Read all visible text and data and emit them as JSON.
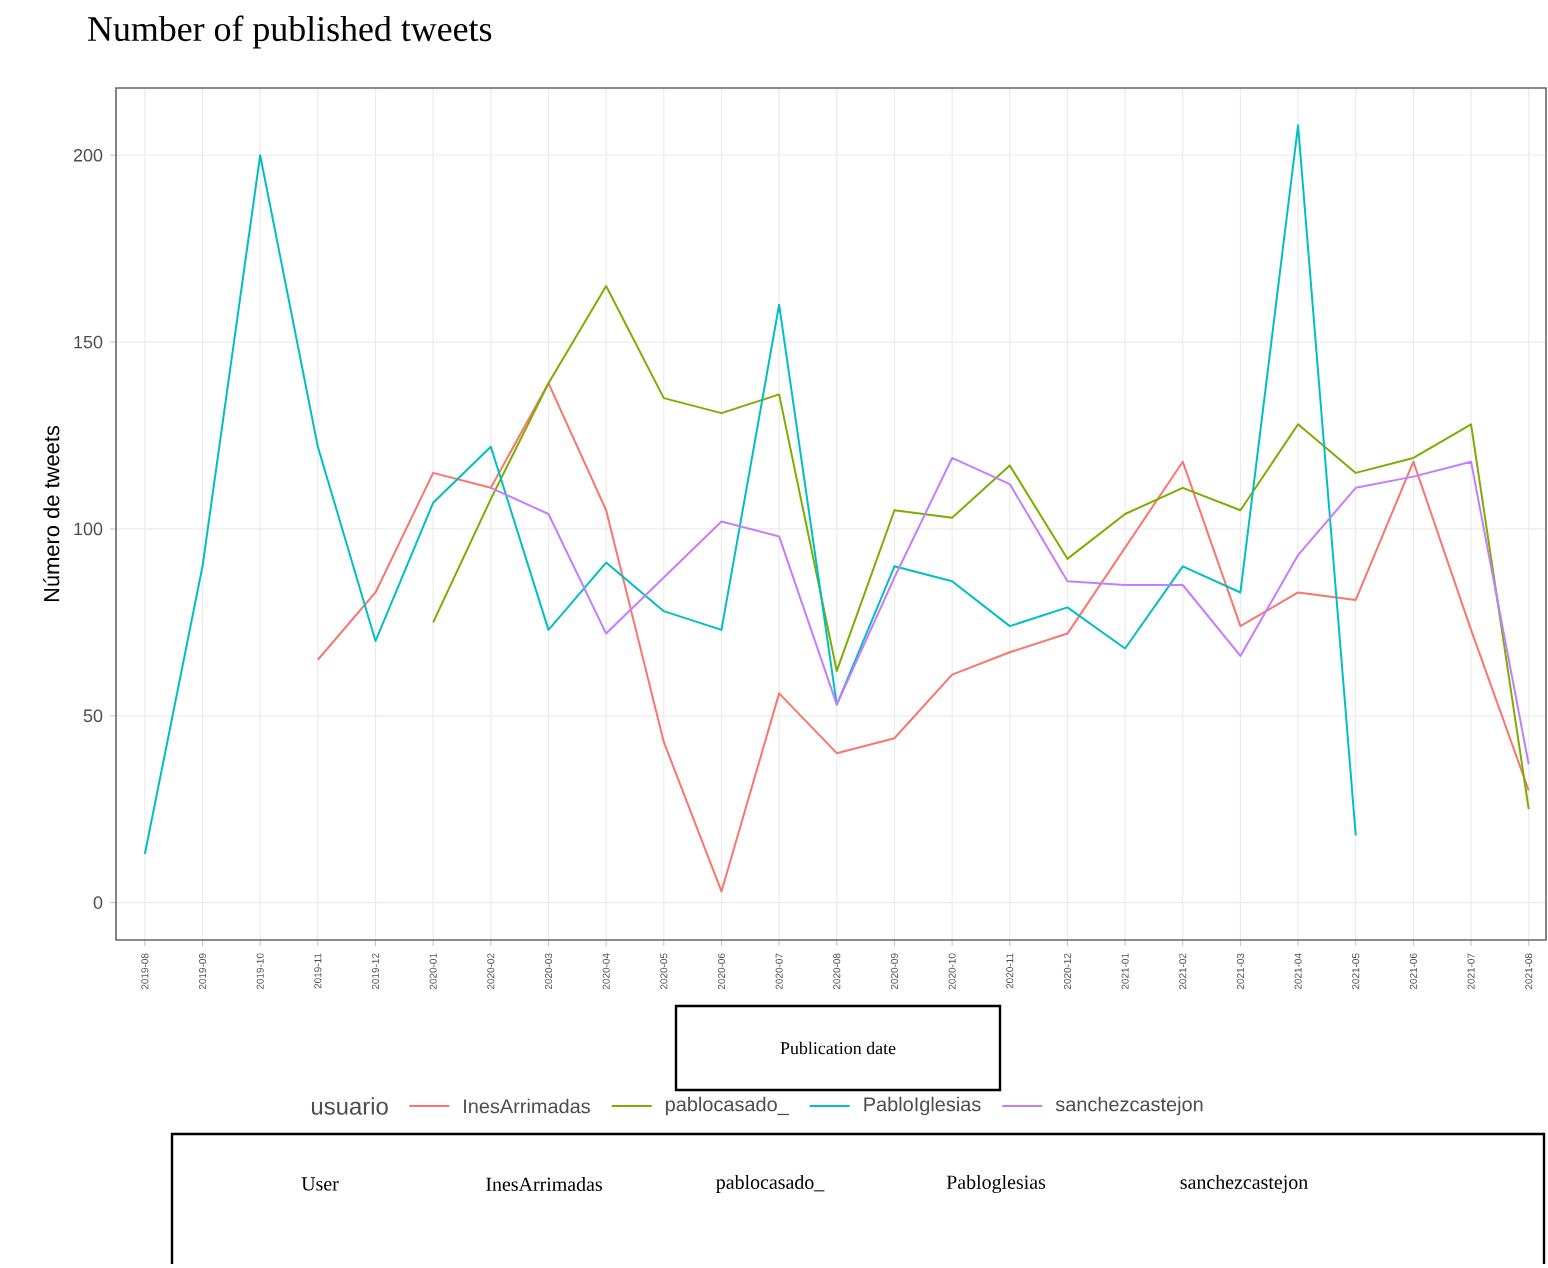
{
  "chart_data": {
    "type": "line",
    "title": "Number of published tweets",
    "xlabel": "Publication date",
    "ylabel": "Número de tweets",
    "legend_title": "usuario",
    "categories": [
      "2019-08",
      "2019-09",
      "2019-10",
      "2019-11",
      "2019-12",
      "2020-01",
      "2020-02",
      "2020-03",
      "2020-04",
      "2020-05",
      "2020-06",
      "2020-07",
      "2020-08",
      "2020-09",
      "2020-10",
      "2020-11",
      "2020-12",
      "2021-01",
      "2021-02",
      "2021-03",
      "2021-04",
      "2021-05",
      "2021-06",
      "2021-07",
      "2021-08"
    ],
    "series": [
      {
        "name": "InesArrimadas",
        "color": "#f8766d",
        "values": [
          null,
          null,
          null,
          65,
          83,
          115,
          111,
          139,
          105,
          43,
          3,
          56,
          40,
          44,
          61,
          67,
          72,
          95,
          118,
          74,
          83,
          81,
          118,
          73,
          30
        ]
      },
      {
        "name": "pablocasado_",
        "color": "#7cae00",
        "values": [
          null,
          null,
          null,
          null,
          null,
          75,
          108,
          139,
          165,
          135,
          131,
          136,
          62,
          105,
          103,
          117,
          92,
          104,
          111,
          105,
          128,
          115,
          119,
          128,
          25
        ]
      },
      {
        "name": "PabloIglesias",
        "color": "#00bfc4",
        "values": [
          13,
          90,
          200,
          122,
          70,
          107,
          122,
          73,
          91,
          78,
          73,
          160,
          53,
          90,
          86,
          74,
          79,
          68,
          90,
          83,
          208,
          18,
          null,
          null,
          null
        ]
      },
      {
        "name": "sanchezcastejon",
        "color": "#c77cff",
        "values": [
          null,
          null,
          null,
          null,
          null,
          null,
          111,
          104,
          72,
          87,
          102,
          98,
          53,
          87,
          119,
          112,
          86,
          85,
          85,
          66,
          93,
          111,
          114,
          118,
          37
        ]
      }
    ],
    "ylim": [
      -10,
      218
    ],
    "yticks": [
      0,
      50,
      100,
      150,
      200
    ],
    "grid": true,
    "legend": "bottom",
    "annotations": [
      "User",
      "InesArrimadas",
      "pablocasado_",
      "Pabloglesias",
      "sanchezcastejon"
    ]
  }
}
